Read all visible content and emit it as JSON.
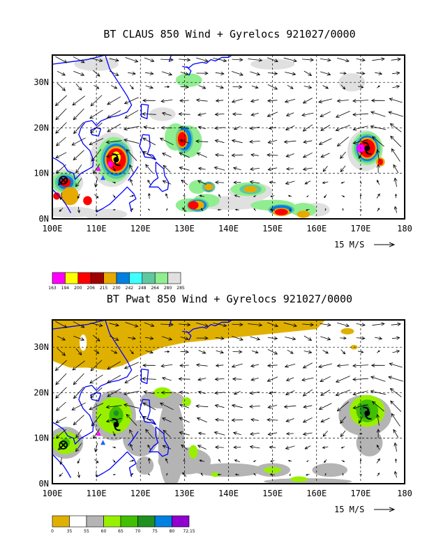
{
  "panels": [
    {
      "title": "BT CLAUS 850 Wind + Gyrelocs 921027/0000",
      "lat_labels": [
        "0N",
        "10N",
        "20N",
        "30N"
      ],
      "lon_labels": [
        "100E",
        "110E",
        "120E",
        "130E",
        "140E",
        "150E",
        "160E",
        "170E",
        "180"
      ],
      "ref_vector": "15 M/S",
      "colorbar_labels": [
        "163",
        "194",
        "200",
        "206",
        "215",
        "230",
        "242",
        "248",
        "264",
        "280",
        "285"
      ],
      "colorbar_colors": [
        "#ff00ff",
        "#ffff00",
        "#ff0000",
        "#a00000",
        "#e6aa00",
        "#0080e0",
        "#40ffff",
        "#60c8a0",
        "#90ee90",
        "#e0e0e0"
      ]
    },
    {
      "title": "BT Pwat 850 Wind + Gyrelocs 921027/0000",
      "lat_labels": [
        "0N",
        "10N",
        "20N",
        "30N"
      ],
      "lon_labels": [
        "100E",
        "110E",
        "120E",
        "130E",
        "140E",
        "150E",
        "160E",
        "170E",
        "180"
      ],
      "ref_vector": "15 M/S",
      "colorbar_labels": [
        "0",
        "35",
        "55",
        "60",
        "65",
        "70",
        "75",
        "80",
        "72.15"
      ],
      "colorbar_colors": [
        "#e0b000",
        "#ffffff",
        "#b4b4b4",
        "#98f000",
        "#40c000",
        "#209020",
        "#0080e0",
        "#9000d0"
      ]
    }
  ],
  "map": {
    "lon_min": 100,
    "lon_max": 180,
    "lat_min": 0,
    "lat_max": 36,
    "coastline_color": "#0000ff",
    "gyres": [
      {
        "name": "typhoon-south-china-sea",
        "lon": 114.5,
        "lat": 13.0
      },
      {
        "name": "typhoon-central-pacific",
        "lon": 171.5,
        "lat": 15.5
      }
    ],
    "circled_x_marker": {
      "lon": 102.5,
      "lat": 8.5
    },
    "triangle_markers": [
      {
        "lon": 110.5,
        "lat": 11.0,
        "color": "#ff00ff"
      },
      {
        "lon": 111.5,
        "lat": 9.0,
        "color": "#2060ff"
      }
    ]
  }
}
